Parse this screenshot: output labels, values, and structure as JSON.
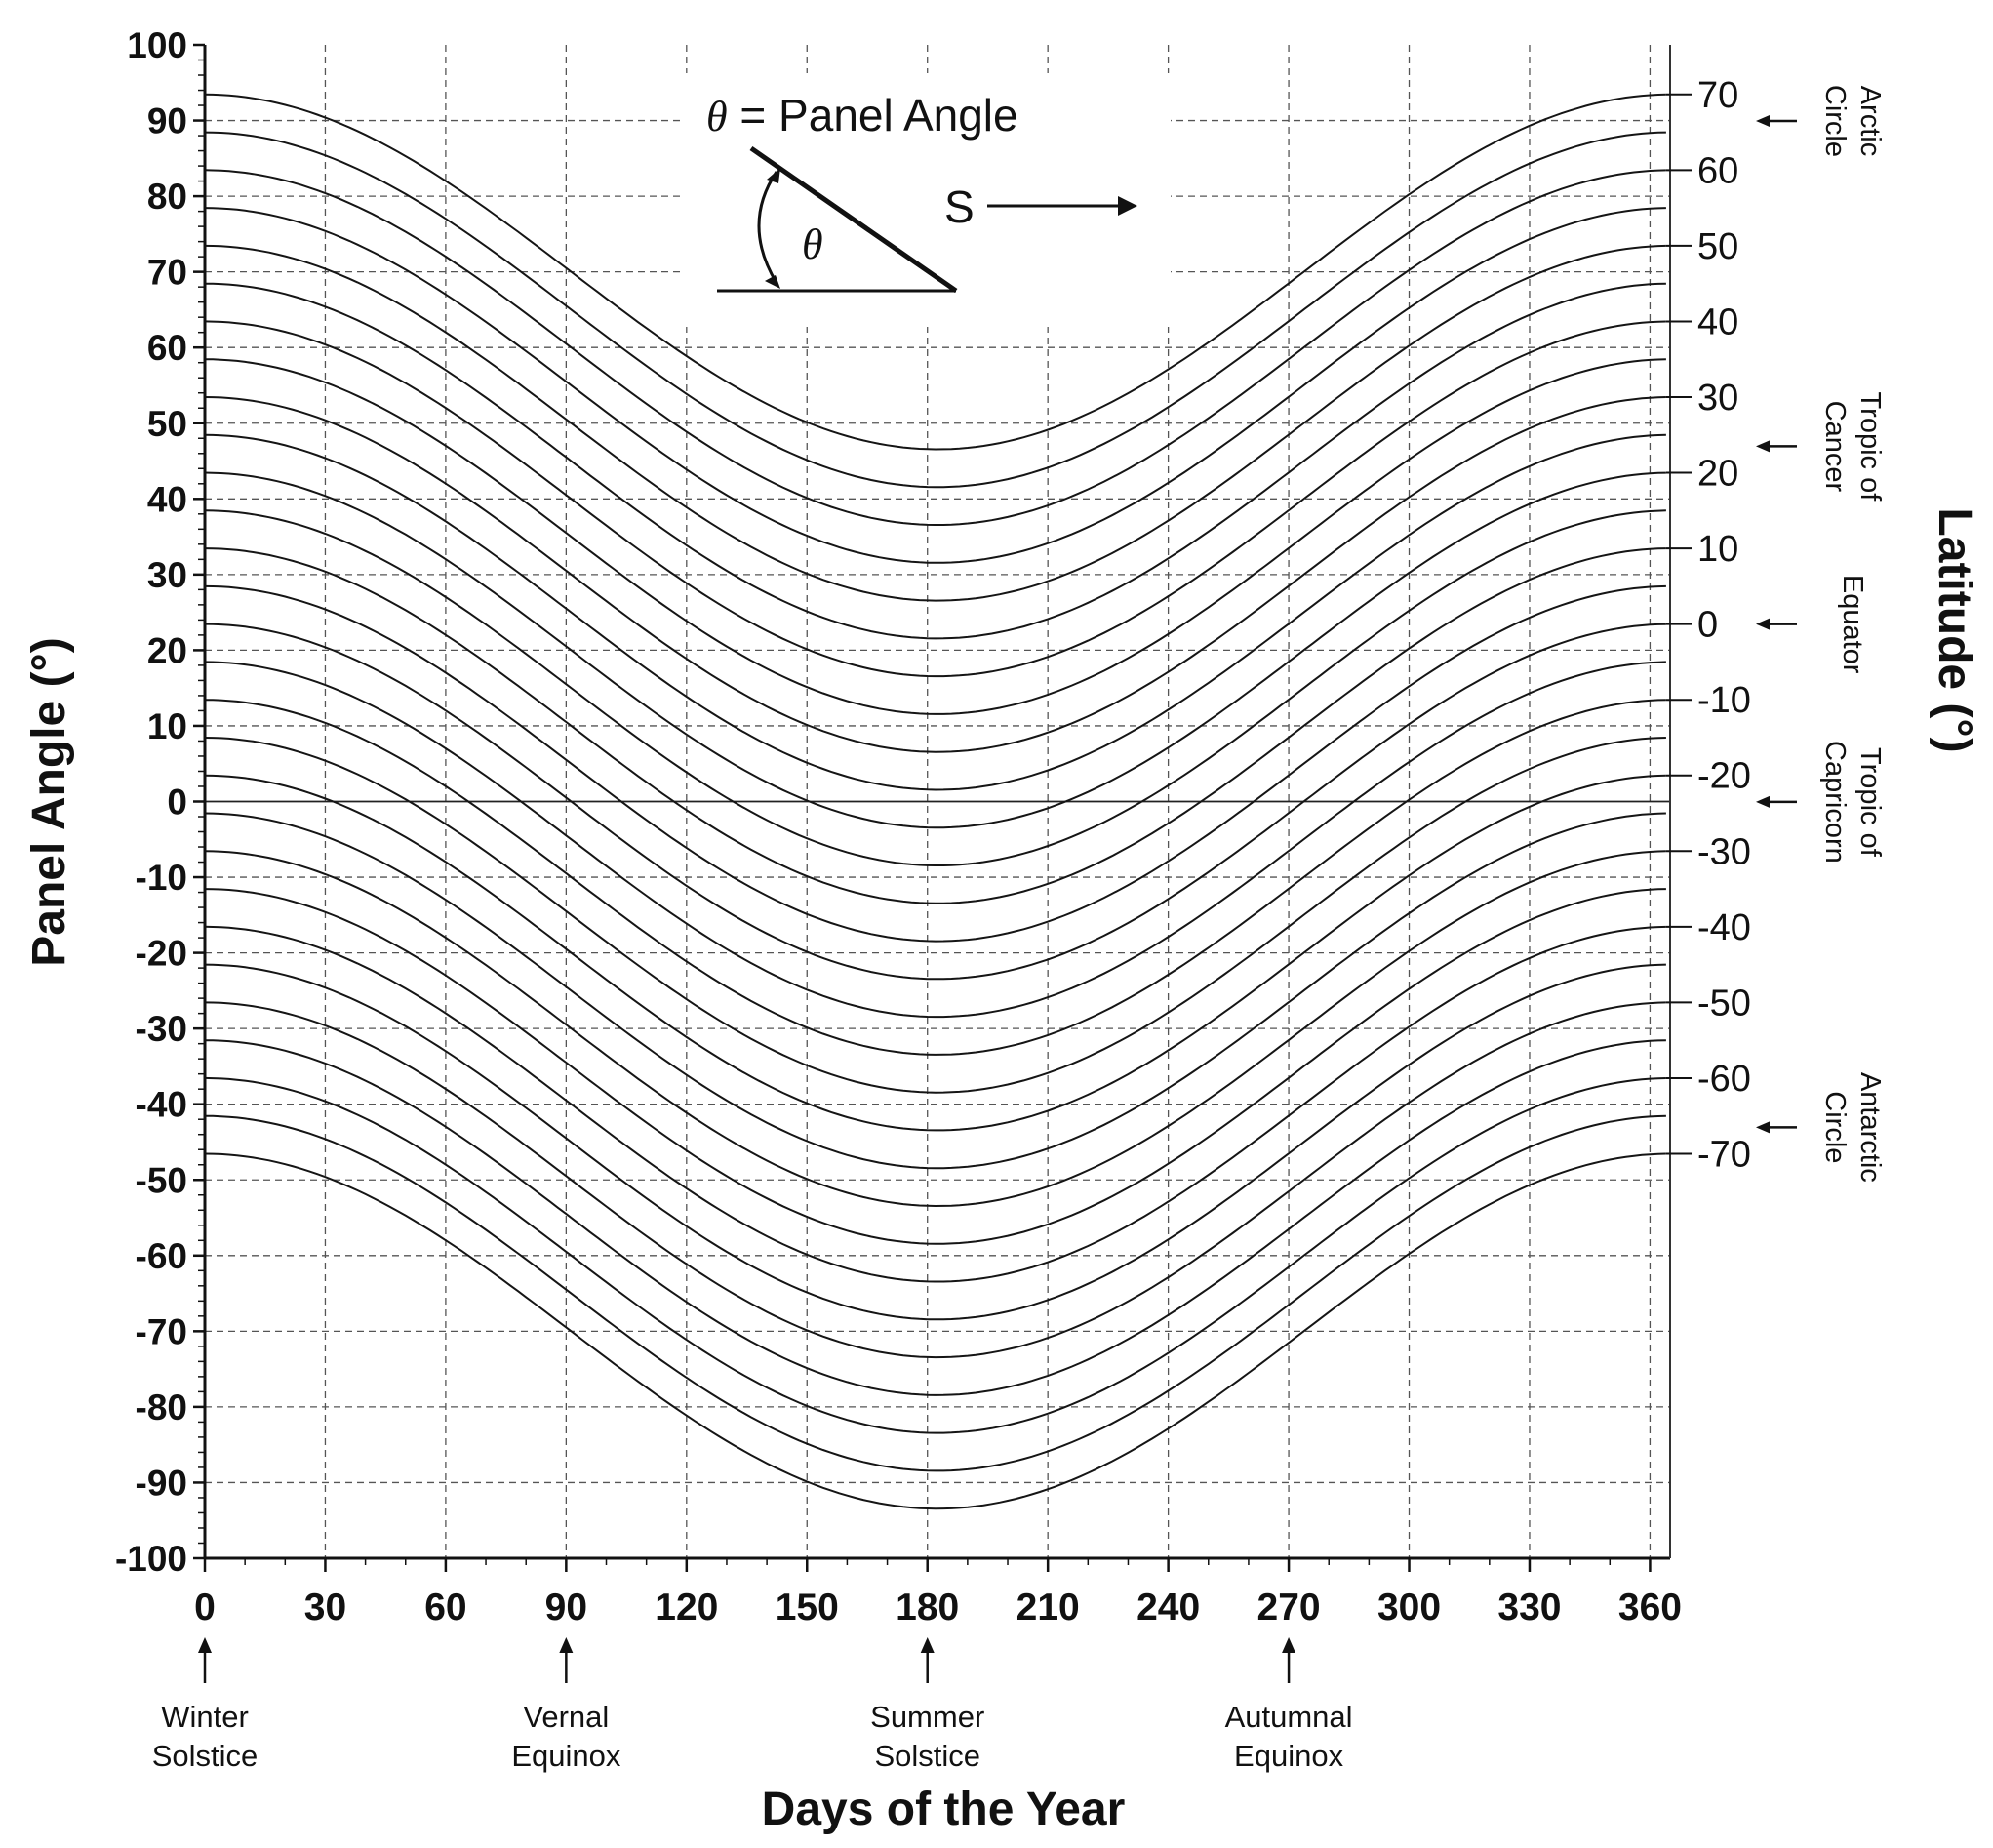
{
  "chart_data": {
    "type": "line",
    "xlabel": "Days of the Year",
    "ylabel": "Panel Angle (°)",
    "y2label": "Latitude (°)",
    "xlim": [
      0,
      365
    ],
    "ylim": [
      -100,
      100
    ],
    "x_ticks": [
      0,
      30,
      60,
      90,
      120,
      150,
      180,
      210,
      240,
      270,
      300,
      330,
      360
    ],
    "y_ticks": [
      100,
      90,
      80,
      70,
      60,
      50,
      40,
      30,
      20,
      10,
      0,
      -10,
      -20,
      -30,
      -40,
      -50,
      -60,
      -70,
      -80,
      -90,
      -100
    ],
    "latitude_ticks": [
      70,
      60,
      50,
      40,
      30,
      20,
      10,
      0,
      -10,
      -20,
      -30,
      -40,
      -50,
      -60,
      -70
    ],
    "latitude_tick_labels": [
      "70",
      "60",
      "50",
      "40",
      "30",
      "20",
      "10",
      "0",
      "-10",
      "-20",
      "-30",
      "-40",
      "-50",
      "-60",
      "-70"
    ],
    "grid": true,
    "grid_style": "dashed",
    "curve_model": "panel_angle = latitude + 23.45 * cos(2π · day / 365)",
    "declination_amplitude": 23.45,
    "latitudes": [
      70,
      65,
      60,
      55,
      50,
      45,
      40,
      35,
      30,
      25,
      20,
      15,
      10,
      5,
      0,
      -5,
      -10,
      -15,
      -20,
      -25,
      -30,
      -35,
      -40,
      -45,
      -50,
      -55,
      -60,
      -65,
      -70
    ],
    "events": [
      {
        "day": 0,
        "label": [
          "Winter",
          "Solstice"
        ]
      },
      {
        "day": 90,
        "label": [
          "Vernal",
          "Equinox"
        ]
      },
      {
        "day": 180,
        "label": [
          "Summer",
          "Solstice"
        ]
      },
      {
        "day": 270,
        "label": [
          "Autumnal",
          "Equinox"
        ]
      }
    ],
    "latitude_zones": [
      {
        "latitude": 66.5,
        "label": [
          "Arctic",
          "Circle"
        ]
      },
      {
        "latitude": 23.5,
        "label": [
          "Tropic of",
          "Cancer"
        ]
      },
      {
        "latitude": 0,
        "label": [
          "Equator"
        ]
      },
      {
        "latitude": -23.5,
        "label": [
          "Tropic of",
          "Capricorn"
        ]
      },
      {
        "latitude": -66.5,
        "label": [
          "Antarctic",
          "Circle"
        ]
      }
    ],
    "inset": {
      "symbol": "θ",
      "title": " = Panel Angle",
      "direction": "S"
    }
  }
}
